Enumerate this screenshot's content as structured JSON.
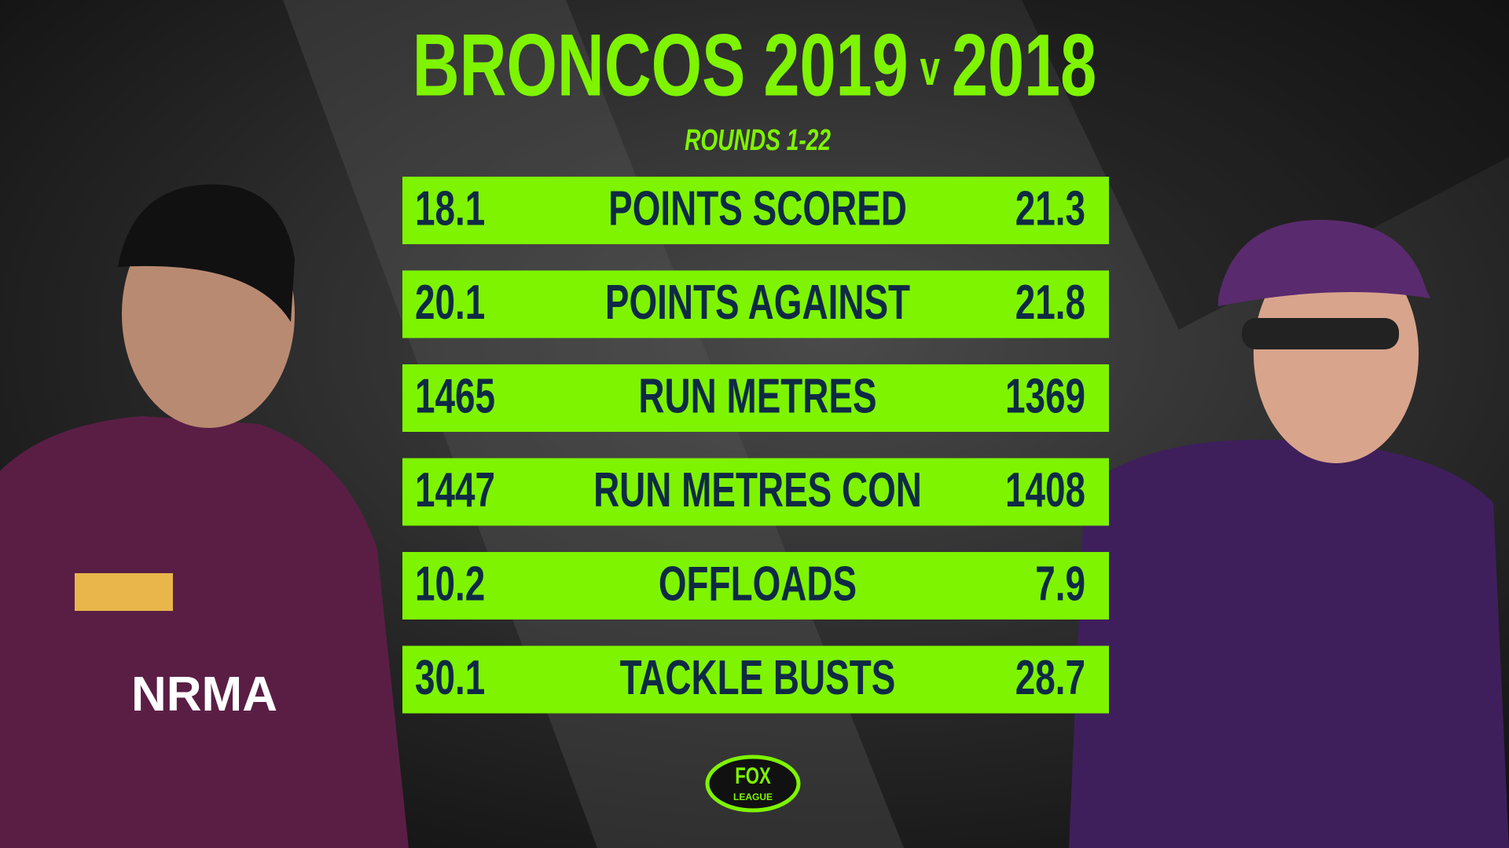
{
  "header": {
    "title_left": "BRONCOS 2019",
    "versus": "v",
    "title_right": "2018",
    "subtitle": "ROUNDS 1-22"
  },
  "table": {
    "rows": [
      [
        "18.1",
        "POINTS SCORED",
        "21.3"
      ],
      [
        "20.1",
        "POINTS AGAINST",
        "21.8"
      ],
      [
        "1465",
        "RUN METRES",
        "1369"
      ],
      [
        "1447",
        "RUN METRES CON",
        "1408"
      ],
      [
        "10.2",
        "OFFLOADS",
        "7.9"
      ],
      [
        "30.1",
        "TACKLE BUSTS",
        "28.7"
      ]
    ]
  },
  "logo": {
    "top": "FOX",
    "bottom": "LEAGUE"
  }
}
